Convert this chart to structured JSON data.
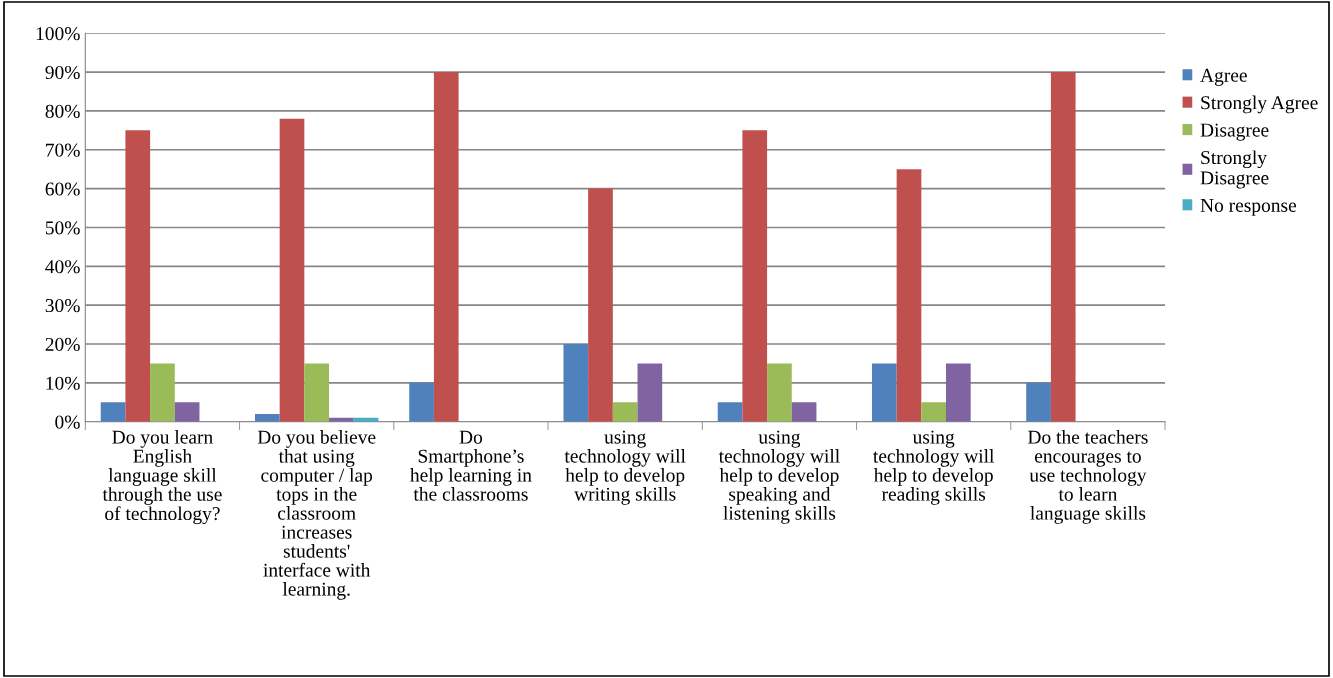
{
  "chart_data": {
    "type": "bar",
    "categories": [
      "Do you learn\nEnglish\nlanguage skill\nthrough the use\nof technology?",
      "Do you believe\nthat using\ncomputer / lap\ntops in the\nclassroom\nincreases\nstudents'\ninterface with\nlearning.",
      "Do\nSmartphone’s\nhelp learning in\nthe classrooms",
      "using\ntechnology will\nhelp to develop\nwriting skills",
      "using\ntechnology will\nhelp to develop\nspeaking and\nlistening skills",
      "using\ntechnology will\nhelp to develop\nreading skills",
      "Do the teachers\nencourages to\nuse technology\nto learn\nlanguage skills"
    ],
    "series": [
      {
        "name": "Agree",
        "color": "#4f81bd",
        "values": [
          5,
          2,
          10,
          20,
          5,
          15,
          10
        ]
      },
      {
        "name": "Strongly Agree",
        "color": "#c0504d",
        "values": [
          75,
          78,
          90,
          60,
          75,
          65,
          90
        ]
      },
      {
        "name": "Disagree",
        "color": "#9bbb59",
        "values": [
          15,
          15,
          0,
          5,
          15,
          5,
          0
        ]
      },
      {
        "name": "Strongly\nDisagree",
        "color": "#8064a2",
        "values": [
          5,
          1,
          0,
          15,
          5,
          15,
          0
        ]
      },
      {
        "name": "No response",
        "color": "#4bacc6",
        "values": [
          0,
          1,
          0,
          0,
          0,
          0,
          0
        ]
      }
    ],
    "ylim": [
      0,
      100
    ],
    "yticks": [
      {
        "value": 0,
        "label": "0%"
      },
      {
        "value": 10,
        "label": "10%"
      },
      {
        "value": 20,
        "label": "20%"
      },
      {
        "value": 30,
        "label": "30%"
      },
      {
        "value": 40,
        "label": "40%"
      },
      {
        "value": 50,
        "label": "50%"
      },
      {
        "value": 60,
        "label": "60%"
      },
      {
        "value": 70,
        "label": "70%"
      },
      {
        "value": 80,
        "label": "80%"
      },
      {
        "value": 90,
        "label": "90%"
      },
      {
        "value": 100,
        "label": "100%"
      }
    ],
    "grid": "y",
    "legend": "right"
  }
}
